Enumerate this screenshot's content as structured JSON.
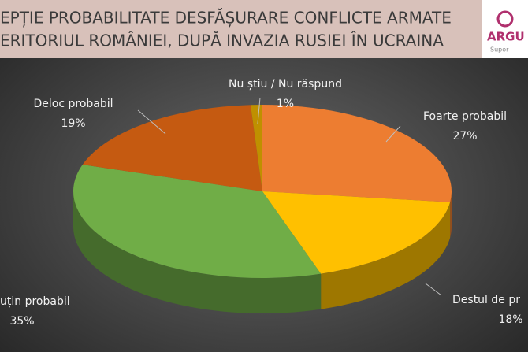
{
  "header": {
    "title_lines": [
      "EPȚIE PROBABILITATE DESFĂȘURARE CONFLICTE ARMATE",
      "ERITORIUL ROMÂNIEI, DUPĂ INVAZIA RUSIEI ÎN UCRAINA"
    ],
    "logo": "ARGU",
    "logo_tagline": "Supor"
  },
  "chart_data": {
    "type": "pie",
    "categories": [
      "Foarte probabil",
      "Destul de pr",
      "uțin probabil",
      "Deloc probabil",
      "Nu știu / Nu răspund"
    ],
    "values": [
      27,
      18,
      35,
      19,
      1
    ],
    "value_labels": [
      "27%",
      "18%",
      "35%",
      "19%",
      "1%"
    ],
    "colors": [
      "#ed7d31",
      "#ffc000",
      "#70ad47",
      "#c55a11",
      "#bf9000"
    ]
  }
}
